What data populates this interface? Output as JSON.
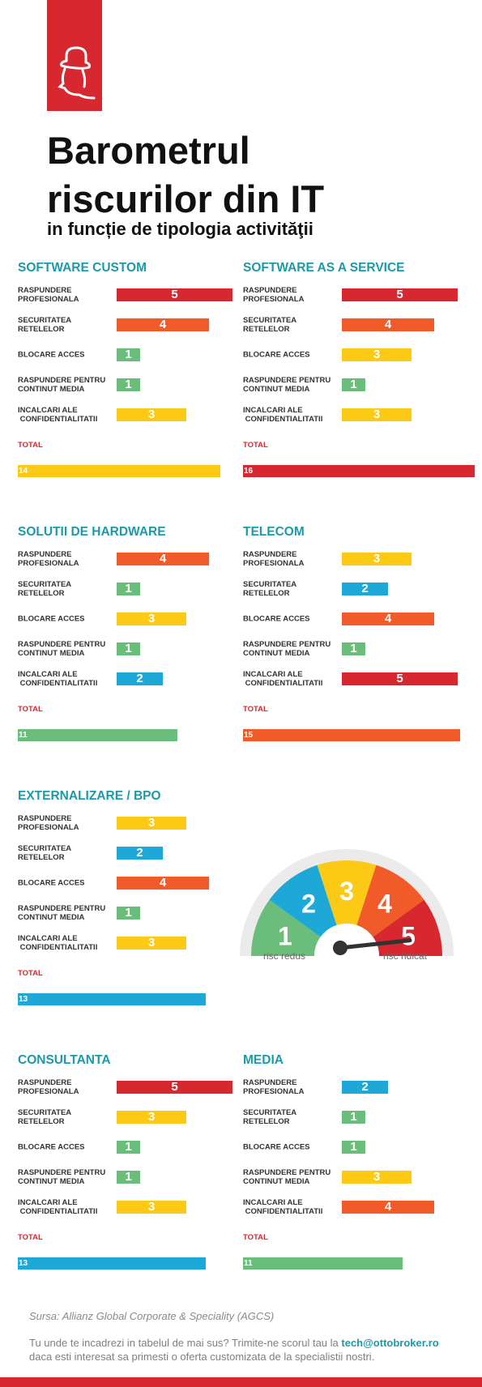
{
  "header": {
    "title_line1": "Barometrul",
    "title_line2": "riscurilor din IT",
    "subtitle": "in funcție de tipologia activităţii"
  },
  "colors": {
    "1": "#6abd7a",
    "2": "#1ea8d8",
    "3": "#fcc915",
    "4": "#f15a29",
    "5": "#d7282f",
    "title": "#1b9aa8",
    "brand_red": "#d7282f"
  },
  "max_total": 16,
  "panels": [
    {
      "title": "SOFTWARE CUSTOM",
      "rows": [
        {
          "label": "RASPUNDERE\nPROFESIONALA",
          "value": "5"
        },
        {
          "label": "SECURITATEA\nRETELELOR",
          "value": "4"
        },
        {
          "label": "BLOCARE ACCES",
          "value": "1"
        },
        {
          "label": "RASPUNDERE PENTRU\nCONTINUT MEDIA",
          "value": "1"
        },
        {
          "label": "INCALCARI ALE\n CONFIDENTIALITATII",
          "value": "3"
        }
      ],
      "total_label": "TOTAL",
      "total": "14"
    },
    {
      "title": "SOFTWARE AS A SERVICE",
      "rows": [
        {
          "label": "RASPUNDERE\nPROFESIONALA",
          "value": "5"
        },
        {
          "label": "SECURITATEA\nRETELELOR",
          "value": "4"
        },
        {
          "label": "BLOCARE ACCES",
          "value": "3"
        },
        {
          "label": "RASPUNDERE PENTRU\nCONTINUT MEDIA",
          "value": "1"
        },
        {
          "label": "INCALCARI ALE\n CONFIDENTIALITATII",
          "value": "3"
        }
      ],
      "total_label": "TOTAL",
      "total": "16"
    },
    {
      "title": "SOLUTII DE HARDWARE",
      "rows": [
        {
          "label": "RASPUNDERE\nPROFESIONALA",
          "value": "4"
        },
        {
          "label": "SECURITATEA\nRETELELOR",
          "value": "1"
        },
        {
          "label": "BLOCARE ACCES",
          "value": "3"
        },
        {
          "label": "RASPUNDERE PENTRU\nCONTINUT MEDIA",
          "value": "1"
        },
        {
          "label": "INCALCARI ALE\n CONFIDENTIALITATII",
          "value": "2"
        }
      ],
      "total_label": "TOTAL",
      "total": "11"
    },
    {
      "title": "TELECOM",
      "rows": [
        {
          "label": "RASPUNDERE\nPROFESIONALA",
          "value": "3"
        },
        {
          "label": "SECURITATEA\nRETELELOR",
          "value": "2"
        },
        {
          "label": "BLOCARE ACCES",
          "value": "4"
        },
        {
          "label": "RASPUNDERE PENTRU\nCONTINUT MEDIA",
          "value": "1"
        },
        {
          "label": "INCALCARI ALE\n CONFIDENTIALITATII",
          "value": "5"
        }
      ],
      "total_label": "TOTAL",
      "total": "15"
    },
    {
      "title": "EXTERNALIZARE / BPO",
      "rows": [
        {
          "label": "RASPUNDERE\nPROFESIONALA",
          "value": "3"
        },
        {
          "label": "SECURITATEA\nRETELELOR",
          "value": "2"
        },
        {
          "label": "BLOCARE ACCES",
          "value": "4"
        },
        {
          "label": "RASPUNDERE PENTRU\nCONTINUT MEDIA",
          "value": "1"
        },
        {
          "label": "INCALCARI ALE\n CONFIDENTIALITATII",
          "value": "3"
        }
      ],
      "total_label": "TOTAL",
      "total": "13"
    },
    {
      "title": "CONSULTANTA",
      "rows": [
        {
          "label": "RASPUNDERE\nPROFESIONALA",
          "value": "5"
        },
        {
          "label": "SECURITATEA\nRETELELOR",
          "value": "3"
        },
        {
          "label": "BLOCARE ACCES",
          "value": "1"
        },
        {
          "label": "RASPUNDERE PENTRU\nCONTINUT MEDIA",
          "value": "1"
        },
        {
          "label": "INCALCARI ALE\n CONFIDENTIALITATII",
          "value": "3"
        }
      ],
      "total_label": "TOTAL",
      "total": "13"
    },
    {
      "title": "MEDIA",
      "rows": [
        {
          "label": "RASPUNDERE\nPROFESIONALA",
          "value": "2"
        },
        {
          "label": "SECURITATEA\nRETELELOR",
          "value": "1"
        },
        {
          "label": "BLOCARE ACCES",
          "value": "1"
        },
        {
          "label": "RASPUNDERE PENTRU\nCONTINUT MEDIA",
          "value": "3"
        },
        {
          "label": "INCALCARI ALE\n CONFIDENTIALITATII",
          "value": "4"
        }
      ],
      "total_label": "TOTAL",
      "total": "11"
    }
  ],
  "gauge": {
    "segments": [
      "1",
      "2",
      "3",
      "4",
      "5"
    ],
    "needle_value": 5,
    "low_label": "risc redus",
    "high_label": "risc ridicat"
  },
  "footer": {
    "source": "Sursa: Allianz Global Corporate & Speciality (AGCS)",
    "cta_text": "Tu unde te incadrezi in tabelul de mai sus? Trimite-ne scorul tau la ",
    "email": "tech@ottobroker.ro",
    "cta_line2": "daca esti interesat sa primesti o oferta customizata de la specialistii nostri."
  }
}
